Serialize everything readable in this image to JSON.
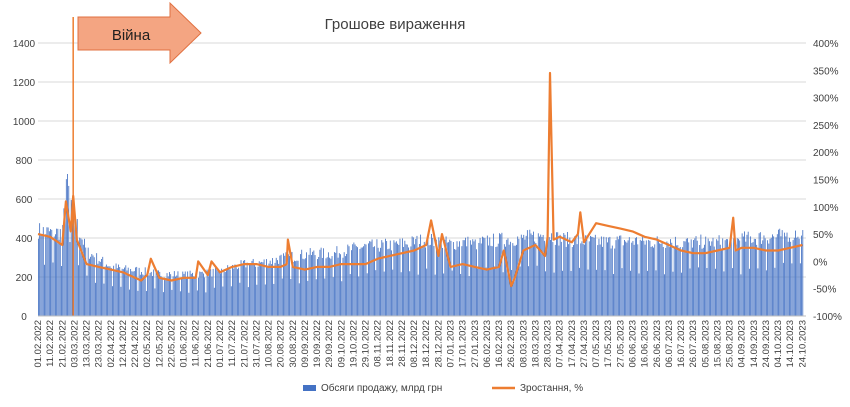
{
  "colors": {
    "bar": "#4472C4",
    "line": "#ED7D31",
    "grid": "#D9D9D9",
    "arrow_fill": "#F4A582",
    "arrow_stroke": "#E07040",
    "text": "#404040"
  },
  "chart_data": {
    "type": "bar+line",
    "title": "Грошове вираження",
    "legend_position": "bottom",
    "grid": true,
    "annotation": {
      "text": "Війна",
      "date": "02.03.2022",
      "shape": "right-arrow"
    },
    "y_left": {
      "min": 0,
      "max": 1400,
      "step": 200,
      "tick_labels": [
        "0",
        "200",
        "400",
        "600",
        "800",
        "1000",
        "1200",
        "1400"
      ]
    },
    "y_right": {
      "min": -100,
      "max": 400,
      "step": 50,
      "tick_labels": [
        "-100%",
        "-50%",
        "0%",
        "50%",
        "100%",
        "150%",
        "200%",
        "250%",
        "300%",
        "350%",
        "400%"
      ]
    },
    "x_tick_labels": [
      "01.02.2022",
      "11.02.2022",
      "21.02.2022",
      "03.03.2022",
      "13.03.2022",
      "23.03.2022",
      "02.04.2022",
      "12.04.2022",
      "22.04.2022",
      "02.05.2022",
      "12.05.2022",
      "22.05.2022",
      "01.06.2022",
      "11.06.2022",
      "21.06.2022",
      "01.07.2022",
      "11.07.2022",
      "21.07.2022",
      "31.07.2022",
      "10.08.2022",
      "20.08.2022",
      "30.08.2022",
      "09.09.2022",
      "19.09.2022",
      "29.09.2022",
      "09.10.2022",
      "19.10.2022",
      "29.10.2022",
      "08.11.2022",
      "18.11.2022",
      "28.11.2022",
      "08.12.2022",
      "18.12.2022",
      "28.12.2022",
      "07.01.2023",
      "17.01.2023",
      "27.01.2023",
      "06.02.2023",
      "16.02.2023",
      "26.02.2023",
      "08.03.2023",
      "18.03.2023",
      "28.03.2023",
      "07.04.2023",
      "17.04.2023",
      "27.04.2023",
      "07.05.2023",
      "17.05.2023",
      "27.05.2023",
      "06.06.2023",
      "16.06.2023",
      "26.06.2023",
      "06.07.2023",
      "16.07.2023",
      "26.07.2023",
      "05.08.2023",
      "15.08.2023",
      "25.08.2023",
      "04.09.2023",
      "14.09.2023",
      "24.09.2023",
      "04.10.2023",
      "14.10.2023",
      "24.10.2023"
    ],
    "series": [
      {
        "name": "Обсяги продажу, млрд грн",
        "type": "bar",
        "axis": "left",
        "x": [
          "01.02.2022",
          "11.02.2022",
          "21.02.2022",
          "24.02.2022",
          "03.03.2022",
          "13.03.2022",
          "23.03.2022",
          "02.04.2022",
          "12.04.2022",
          "22.04.2022",
          "02.05.2022",
          "12.05.2022",
          "22.05.2022",
          "01.06.2022",
          "11.06.2022",
          "21.06.2022",
          "01.07.2022",
          "11.07.2022",
          "21.07.2022",
          "31.07.2022",
          "10.08.2022",
          "20.08.2022",
          "30.08.2022",
          "09.09.2022",
          "19.09.2022",
          "29.09.2022",
          "09.10.2022",
          "19.10.2022",
          "29.10.2022",
          "08.11.2022",
          "18.11.2022",
          "28.11.2022",
          "08.12.2022",
          "18.12.2022",
          "28.12.2022",
          "07.01.2023",
          "17.01.2023",
          "27.01.2023",
          "06.02.2023",
          "16.02.2023",
          "26.02.2023",
          "08.03.2023",
          "18.03.2023",
          "28.03.2023",
          "07.04.2023",
          "17.04.2023",
          "27.04.2023",
          "07.05.2023",
          "17.05.2023",
          "27.05.2023",
          "06.06.2023",
          "16.06.2023",
          "26.06.2023",
          "06.07.2023",
          "16.07.2023",
          "26.07.2023",
          "05.08.2023",
          "15.08.2023",
          "25.08.2023",
          "04.09.2023",
          "14.09.2023",
          "24.09.2023",
          "04.10.2023",
          "14.10.2023",
          "24.10.2023"
        ],
        "values": [
          440,
          430,
          430,
          700,
          500,
          330,
          290,
          255,
          240,
          235,
          225,
          215,
          215,
          210,
          215,
          220,
          230,
          250,
          265,
          270,
          280,
          295,
          305,
          315,
          320,
          320,
          330,
          345,
          355,
          360,
          365,
          370,
          380,
          390,
          380,
          370,
          380,
          370,
          385,
          390,
          395,
          400,
          410,
          420,
          395,
          390,
          385,
          380,
          380,
          385,
          385,
          380,
          380,
          385,
          375,
          380,
          380,
          380,
          380,
          395,
          400,
          405,
          410,
          420,
          430
        ]
      },
      {
        "name": "Зростання, %",
        "type": "line",
        "axis": "right",
        "x": [
          "01.02.2022",
          "11.02.2022",
          "21.02.2022",
          "24.02.2022",
          "28.02.2022",
          "02.03.2022",
          "05.03.2022",
          "13.03.2022",
          "23.03.2022",
          "02.04.2022",
          "12.04.2022",
          "22.04.2022",
          "27.04.2022",
          "02.05.2022",
          "05.05.2022",
          "12.05.2022",
          "22.05.2022",
          "01.06.2022",
          "11.06.2022",
          "13.06.2022",
          "21.06.2022",
          "24.06.2022",
          "01.07.2022",
          "11.07.2022",
          "21.07.2022",
          "31.07.2022",
          "10.08.2022",
          "20.08.2022",
          "25.08.2022",
          "26.08.2022",
          "30.08.2022",
          "09.09.2022",
          "19.09.2022",
          "29.09.2022",
          "09.10.2022",
          "19.10.2022",
          "29.10.2022",
          "08.11.2022",
          "18.11.2022",
          "28.11.2022",
          "08.12.2022",
          "18.12.2022",
          "22.12.2022",
          "28.12.2022",
          "31.12.2022",
          "07.01.2023",
          "17.01.2023",
          "27.01.2023",
          "06.02.2023",
          "16.02.2023",
          "20.02.2023",
          "26.02.2023",
          "01.03.2023",
          "08.03.2023",
          "18.03.2023",
          "26.03.2023",
          "28.03.2023",
          "30.03.2023",
          "02.04.2023",
          "07.04.2023",
          "17.04.2023",
          "22.04.2023",
          "24.04.2023",
          "27.04.2023",
          "07.05.2023",
          "17.05.2023",
          "27.05.2023",
          "06.06.2023",
          "16.06.2023",
          "26.06.2023",
          "06.07.2023",
          "16.07.2023",
          "26.07.2023",
          "05.08.2023",
          "15.08.2023",
          "25.08.2023",
          "28.08.2023",
          "30.08.2023",
          "04.09.2023",
          "14.09.2023",
          "24.09.2023",
          "04.10.2023",
          "14.10.2023",
          "24.10.2023"
        ],
        "values": [
          50,
          45,
          30,
          110,
          55,
          120,
          40,
          -5,
          -10,
          -15,
          -20,
          -30,
          -35,
          -25,
          5,
          -30,
          -35,
          -30,
          -30,
          0,
          -25,
          0,
          -20,
          -10,
          -5,
          -5,
          -10,
          -10,
          -5,
          40,
          -10,
          -15,
          -10,
          -10,
          -5,
          -5,
          -5,
          5,
          10,
          15,
          20,
          30,
          75,
          10,
          50,
          -10,
          -5,
          -10,
          -15,
          -10,
          20,
          -45,
          -30,
          20,
          30,
          10,
          45,
          345,
          40,
          45,
          35,
          50,
          90,
          35,
          70,
          65,
          60,
          55,
          45,
          40,
          30,
          20,
          15,
          15,
          20,
          25,
          80,
          20,
          25,
          25,
          20,
          20,
          25,
          30
        ]
      }
    ]
  }
}
